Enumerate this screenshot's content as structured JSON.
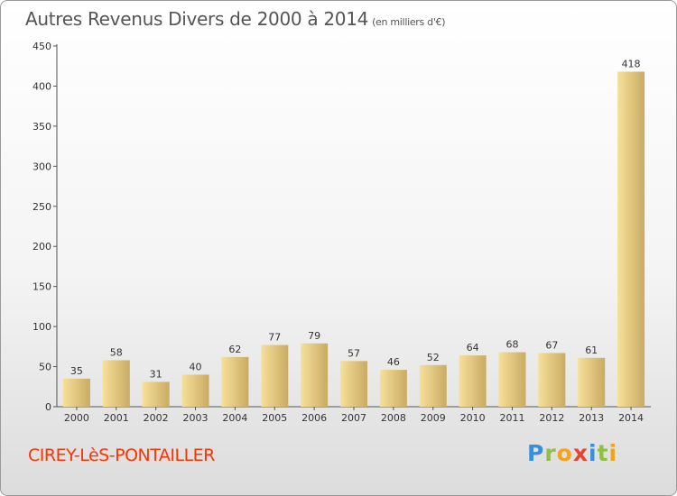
{
  "title": "Autres Revenus Divers de 2000 à 2014",
  "subtitle": "(en milliers d'€)",
  "commune": "CIREY-LèS-PONTAILLER",
  "logo": {
    "letters": [
      "P",
      "r",
      "o",
      "x",
      "i",
      "t",
      "i"
    ],
    "colors": [
      "#3a8fd9",
      "#8fc043",
      "#f7a21b",
      "#e8432e",
      "#3a8fd9",
      "#8fc043",
      "#f7a21b"
    ]
  },
  "colors": {
    "bar_light": "#f7e09a",
    "bar_dark": "#c9ab63",
    "title": "#555555",
    "commune": "#ff3300"
  },
  "chart_data": {
    "type": "bar",
    "title": "Autres Revenus Divers de 2000 à 2014",
    "ylabel": "",
    "xlabel": "",
    "categories": [
      "2000",
      "2001",
      "2002",
      "2003",
      "2004",
      "2005",
      "2006",
      "2007",
      "2008",
      "2009",
      "2010",
      "2011",
      "2012",
      "2013",
      "2014"
    ],
    "values": [
      35,
      58,
      31,
      40,
      62,
      77,
      79,
      57,
      46,
      52,
      64,
      68,
      67,
      61,
      418
    ],
    "ylim": [
      0,
      450
    ],
    "yticks": [
      0,
      50,
      100,
      150,
      200,
      250,
      300,
      350,
      400,
      450
    ],
    "grid": false
  }
}
